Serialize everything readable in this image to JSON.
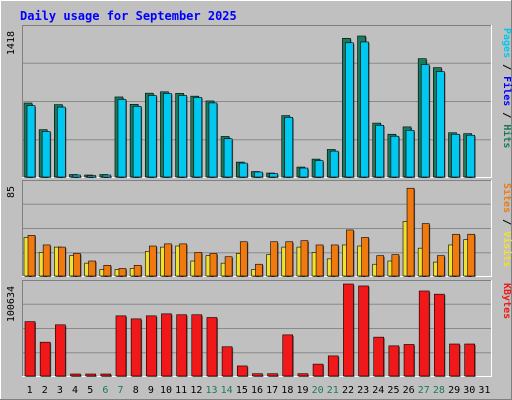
{
  "colors": {
    "background": "#C0C0C0",
    "panel": "#C0C0C0",
    "title": "#0000FF",
    "grid": "#8A8A8A",
    "hits": "#1A7A5C",
    "files": "#00C8F0",
    "pages": "#00E0FF",
    "visits": "#F0E030",
    "sites": "#F07A10",
    "kbytes": "#F01818",
    "day_weekday": "#000000",
    "day_weekend": "#1A7A5C"
  },
  "chart_data": [
    {
      "type": "bar",
      "title": "Daily usage for September 2025",
      "panel": "top",
      "ymax_label": "1418",
      "ylim": [
        0,
        1418
      ],
      "right_labels": [
        {
          "text": "Pages",
          "color": "#00C8F0"
        },
        {
          "text": " / ",
          "color": "#000000"
        },
        {
          "text": "Files",
          "color": "#0000FF"
        },
        {
          "text": " / ",
          "color": "#000000"
        },
        {
          "text": "Hits",
          "color": "#1A7A5C"
        }
      ],
      "categories": [
        "1",
        "2",
        "3",
        "4",
        "5",
        "6",
        "7",
        "8",
        "9",
        "10",
        "11",
        "12",
        "13",
        "14",
        "15",
        "16",
        "17",
        "18",
        "19",
        "20",
        "21",
        "22",
        "23",
        "24",
        "25",
        "26",
        "27",
        "28",
        "29",
        "30",
        "31"
      ],
      "series": [
        {
          "name": "Hits",
          "values": [
            744,
            476,
            728,
            25,
            20,
            25,
            805,
            731,
            843,
            857,
            841,
            813,
            765,
            408,
            150,
            55,
            40,
            618,
            100,
            180,
            277,
            1395,
            1418,
            542,
            430,
            504,
            1190,
            1100,
            445,
            436,
            0
          ]
        },
        {
          "name": "Files",
          "values": [
            718,
            458,
            703,
            20,
            15,
            20,
            780,
            710,
            820,
            840,
            820,
            800,
            745,
            385,
            140,
            50,
            35,
            600,
            90,
            165,
            260,
            1350,
            1358,
            520,
            410,
            470,
            1130,
            1060,
            430,
            420,
            0
          ]
        },
        {
          "name": "Pages",
          "values": [
            0,
            0,
            0,
            0,
            0,
            0,
            0,
            0,
            0,
            0,
            0,
            0,
            0,
            0,
            0,
            0,
            0,
            0,
            0,
            0,
            0,
            0,
            0,
            0,
            0,
            0,
            0,
            0,
            0,
            0,
            0
          ]
        }
      ]
    },
    {
      "type": "bar",
      "panel": "middle",
      "ymax_label": "85",
      "ylim": [
        0,
        85
      ],
      "right_labels": [
        {
          "text": "Sites",
          "color": "#F07A10"
        },
        {
          "text": " / ",
          "color": "#000000"
        },
        {
          "text": "Visits",
          "color": "#F0E030"
        }
      ],
      "categories": [
        "1",
        "2",
        "3",
        "4",
        "5",
        "6",
        "7",
        "8",
        "9",
        "10",
        "11",
        "12",
        "13",
        "14",
        "15",
        "16",
        "17",
        "18",
        "19",
        "20",
        "21",
        "22",
        "23",
        "24",
        "25",
        "26",
        "27",
        "28",
        "29",
        "30",
        "31"
      ],
      "series": [
        {
          "name": "Visits",
          "values": [
            36,
            22,
            27,
            19,
            12,
            6,
            6,
            7,
            23,
            27,
            28,
            14,
            19,
            12,
            21,
            6,
            20,
            27,
            27,
            22,
            16,
            29,
            28,
            11,
            14,
            51,
            26,
            13,
            29,
            34,
            0
          ]
        },
        {
          "name": "Sites",
          "values": [
            38,
            29,
            27,
            21,
            14,
            10,
            7,
            10,
            28,
            30,
            30,
            22,
            21,
            18,
            32,
            11,
            32,
            32,
            33,
            29,
            29,
            43,
            36,
            19,
            20,
            82,
            49,
            19,
            39,
            39,
            0
          ]
        }
      ]
    },
    {
      "type": "bar",
      "panel": "bottom",
      "ymax_label": "100634",
      "ylim": [
        0,
        100634
      ],
      "right_labels": [
        {
          "text": "KBytes",
          "color": "#F01818"
        }
      ],
      "categories": [
        "1",
        "2",
        "3",
        "4",
        "5",
        "6",
        "7",
        "8",
        "9",
        "10",
        "11",
        "12",
        "13",
        "14",
        "15",
        "16",
        "17",
        "18",
        "19",
        "20",
        "21",
        "22",
        "23",
        "24",
        "25",
        "26",
        "27",
        "28",
        "29",
        "30",
        "31"
      ],
      "weekend_days": [
        "6",
        "7",
        "13",
        "14",
        "20",
        "21",
        "27",
        "28"
      ],
      "series": [
        {
          "name": "KBytes",
          "values": [
            59500,
            37000,
            56000,
            1200,
            1200,
            1200,
            65800,
            62500,
            65800,
            68000,
            67000,
            67000,
            64000,
            32000,
            11000,
            2500,
            2500,
            45000,
            2500,
            13000,
            22000,
            100634,
            98500,
            42500,
            33000,
            34500,
            93000,
            89500,
            35000,
            35000,
            0
          ]
        }
      ]
    }
  ]
}
